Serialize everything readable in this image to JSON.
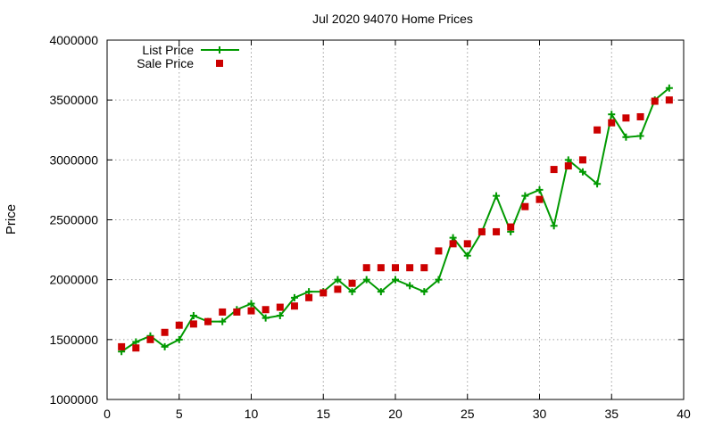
{
  "chart_data": {
    "type": "line",
    "title": "Jul 2020 94070 Home Prices",
    "xlabel": "",
    "ylabel": "Price",
    "xlim": [
      0,
      40
    ],
    "ylim": [
      1000000,
      4000000
    ],
    "xticks": [
      0,
      5,
      10,
      15,
      20,
      25,
      30,
      35,
      40
    ],
    "yticks": [
      1000000,
      1500000,
      2000000,
      2500000,
      3000000,
      3500000,
      4000000
    ],
    "grid": true,
    "legend": "top-left",
    "series": [
      {
        "name": "List Price",
        "style": "line-plus",
        "color": "#009900",
        "x": [
          1,
          2,
          3,
          4,
          5,
          6,
          7,
          8,
          9,
          10,
          11,
          12,
          13,
          14,
          15,
          16,
          17,
          18,
          19,
          20,
          21,
          22,
          23,
          24,
          25,
          26,
          27,
          28,
          29,
          30,
          31,
          32,
          33,
          34,
          35,
          36,
          37,
          38,
          39
        ],
        "values": [
          1400000,
          1480000,
          1530000,
          1440000,
          1500000,
          1700000,
          1650000,
          1650000,
          1750000,
          1800000,
          1680000,
          1700000,
          1850000,
          1900000,
          1900000,
          2000000,
          1900000,
          2000000,
          1900000,
          2000000,
          1950000,
          1900000,
          2000000,
          2350000,
          2200000,
          2400000,
          2700000,
          2400000,
          2700000,
          2750000,
          2450000,
          3000000,
          2900000,
          2800000,
          3380000,
          3190000,
          3200000,
          3500000,
          3600000
        ]
      },
      {
        "name": "Sale Price",
        "style": "square",
        "color": "#cc0000",
        "x": [
          1,
          2,
          3,
          4,
          5,
          6,
          7,
          8,
          9,
          10,
          11,
          12,
          13,
          14,
          15,
          16,
          17,
          18,
          19,
          20,
          21,
          22,
          23,
          24,
          25,
          26,
          27,
          28,
          29,
          30,
          31,
          32,
          33,
          34,
          35,
          36,
          37,
          38,
          39
        ],
        "values": [
          1440000,
          1430000,
          1500000,
          1560000,
          1620000,
          1630000,
          1650000,
          1730000,
          1730000,
          1740000,
          1750000,
          1770000,
          1780000,
          1850000,
          1890000,
          1920000,
          1970000,
          2100000,
          2100000,
          2100000,
          2100000,
          2100000,
          2240000,
          2300000,
          2300000,
          2400000,
          2400000,
          2440000,
          2610000,
          2670000,
          2920000,
          2950000,
          3000000,
          3250000,
          3310000,
          3350000,
          3360000,
          3490000,
          3500000
        ]
      }
    ]
  }
}
